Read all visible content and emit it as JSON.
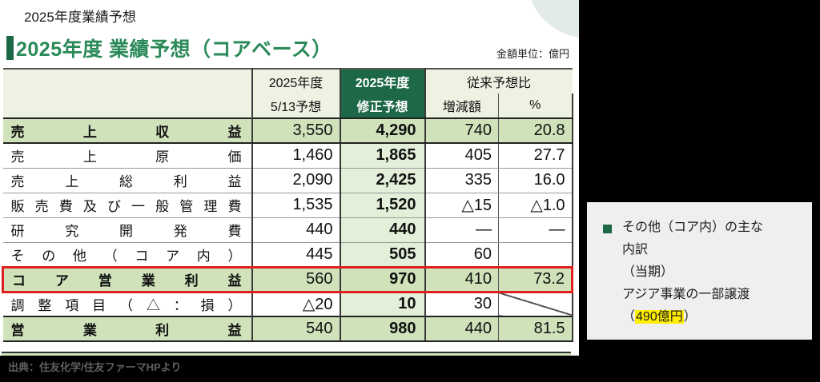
{
  "page": {
    "suptitle": "2025年度業績予想",
    "title": "2025年度 業績予想（コアベース）",
    "unit_note": "金額単位：億円",
    "source": "出典：住友化学/住友ファーマHPより"
  },
  "table": {
    "header": {
      "prev_line1": "2025年度",
      "prev_line2": "5/13予想",
      "rev_line1": "2025年度",
      "rev_line2": "修正予想",
      "vs_group": "従来予想比",
      "delta": "増減額",
      "pct": "%"
    },
    "rows": [
      {
        "label": "売上収益",
        "prev": "3,550",
        "rev": "4,290",
        "delta": "740",
        "pct": "20.8",
        "style": "green",
        "highlight": false,
        "diagonal": false
      },
      {
        "label": "売上原価",
        "prev": "1,460",
        "rev": "1,865",
        "delta": "405",
        "pct": "27.7",
        "style": "plain",
        "highlight": false,
        "diagonal": false
      },
      {
        "label": "売上総利益",
        "prev": "2,090",
        "rev": "2,425",
        "delta": "335",
        "pct": "16.0",
        "style": "plain",
        "highlight": false,
        "diagonal": false
      },
      {
        "label": "販売費及び一般管理費",
        "prev": "1,535",
        "rev": "1,520",
        "delta": "△15",
        "pct": "△1.0",
        "style": "plain",
        "highlight": false,
        "diagonal": false
      },
      {
        "label": "研究開発費",
        "prev": "440",
        "rev": "440",
        "delta": "―",
        "pct": "―",
        "style": "plain",
        "highlight": false,
        "diagonal": false
      },
      {
        "label": "その他（コア内）",
        "prev": "445",
        "rev": "505",
        "delta": "60",
        "pct": "",
        "style": "plain",
        "highlight": false,
        "diagonal": false
      },
      {
        "label": "コア営業利益",
        "prev": "560",
        "rev": "970",
        "delta": "410",
        "pct": "73.2",
        "style": "green",
        "highlight": true,
        "diagonal": false
      },
      {
        "label": "調整項目（△：損）",
        "prev": "△20",
        "rev": "10",
        "delta": "30",
        "pct": "",
        "style": "plain",
        "highlight": false,
        "diagonal": true
      },
      {
        "label": "営業利益",
        "prev": "540",
        "rev": "980",
        "delta": "440",
        "pct": "81.5",
        "style": "green",
        "highlight": false,
        "diagonal": false
      }
    ]
  },
  "note": {
    "lines": [
      "その他（コア内）の主な",
      "内訳",
      "（当期）",
      "アジア事業の一部譲渡"
    ],
    "last_prefix": "（",
    "last_highlight": "490億円",
    "last_suffix": "）"
  },
  "colors": {
    "accent_dark_green": "#1d6847",
    "title_green": "#2a8a58",
    "row_green": "#cfe2ba",
    "header_pale_green": "#edf2e2",
    "rev_tint": "#e3efd8",
    "highlight_red": "#e02020",
    "highlight_yellow": "#ffee00"
  }
}
